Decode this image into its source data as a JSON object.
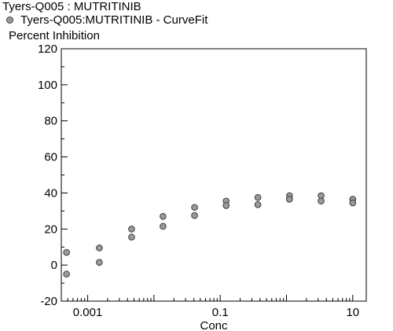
{
  "chart_data": {
    "type": "scatter",
    "title": "Tyers-Q005  :  MUTRITINIB",
    "legend": "Tyers-Q005:MUTRITINIB - CurveFit",
    "legend_position": "top-left",
    "xlabel": "Conc",
    "ylabel": "Percent  Inhibition",
    "x_scale": "log",
    "xlim": [
      0.0004,
      16
    ],
    "ylim": [
      -20,
      120
    ],
    "x_tick_labels": [
      "0.001",
      "0.1",
      "10"
    ],
    "x_ticks": [
      0.001,
      0.1,
      10
    ],
    "y_ticks": [
      -20,
      0,
      20,
      40,
      60,
      80,
      100,
      120
    ],
    "grid": false,
    "marker_color": "#9a9a9a",
    "marker_edge_color": "#3c3c3c",
    "series": [
      {
        "name": "Tyers-Q005:MUTRITINIB - CurveFit",
        "points": [
          {
            "x": 0.00048,
            "y": 7
          },
          {
            "x": 0.00048,
            "y": -5
          },
          {
            "x": 0.0015,
            "y": 9.5
          },
          {
            "x": 0.0015,
            "y": 1.5
          },
          {
            "x": 0.0046,
            "y": 20
          },
          {
            "x": 0.0046,
            "y": 15.5
          },
          {
            "x": 0.0137,
            "y": 27
          },
          {
            "x": 0.0137,
            "y": 21.5
          },
          {
            "x": 0.041,
            "y": 32
          },
          {
            "x": 0.041,
            "y": 27.5
          },
          {
            "x": 0.123,
            "y": 35.5
          },
          {
            "x": 0.123,
            "y": 33
          },
          {
            "x": 0.37,
            "y": 37.5
          },
          {
            "x": 0.37,
            "y": 33.5
          },
          {
            "x": 1.11,
            "y": 38.5
          },
          {
            "x": 1.11,
            "y": 36.5
          },
          {
            "x": 3.33,
            "y": 38.5
          },
          {
            "x": 3.33,
            "y": 35.5
          },
          {
            "x": 10,
            "y": 36.5
          },
          {
            "x": 10,
            "y": 34.5
          }
        ]
      }
    ]
  }
}
